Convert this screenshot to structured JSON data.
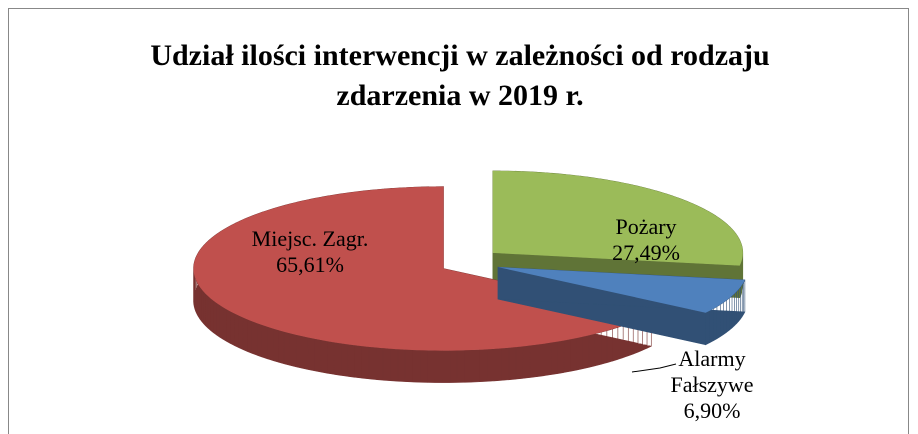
{
  "chart_data": {
    "type": "pie",
    "title": "Udział ilości interwencji w zależności od rodzaju zdarzenia w 2019 r.",
    "categories": [
      "Pożary",
      "Alarmy Fałszywe",
      "Miejsc. Zagr."
    ],
    "values": [
      27.49,
      6.9,
      65.61
    ],
    "value_labels": [
      "27,49%",
      "6,90%",
      "65,61%"
    ],
    "colors": [
      "#9bbb59",
      "#4f81bd",
      "#c0504d"
    ]
  }
}
